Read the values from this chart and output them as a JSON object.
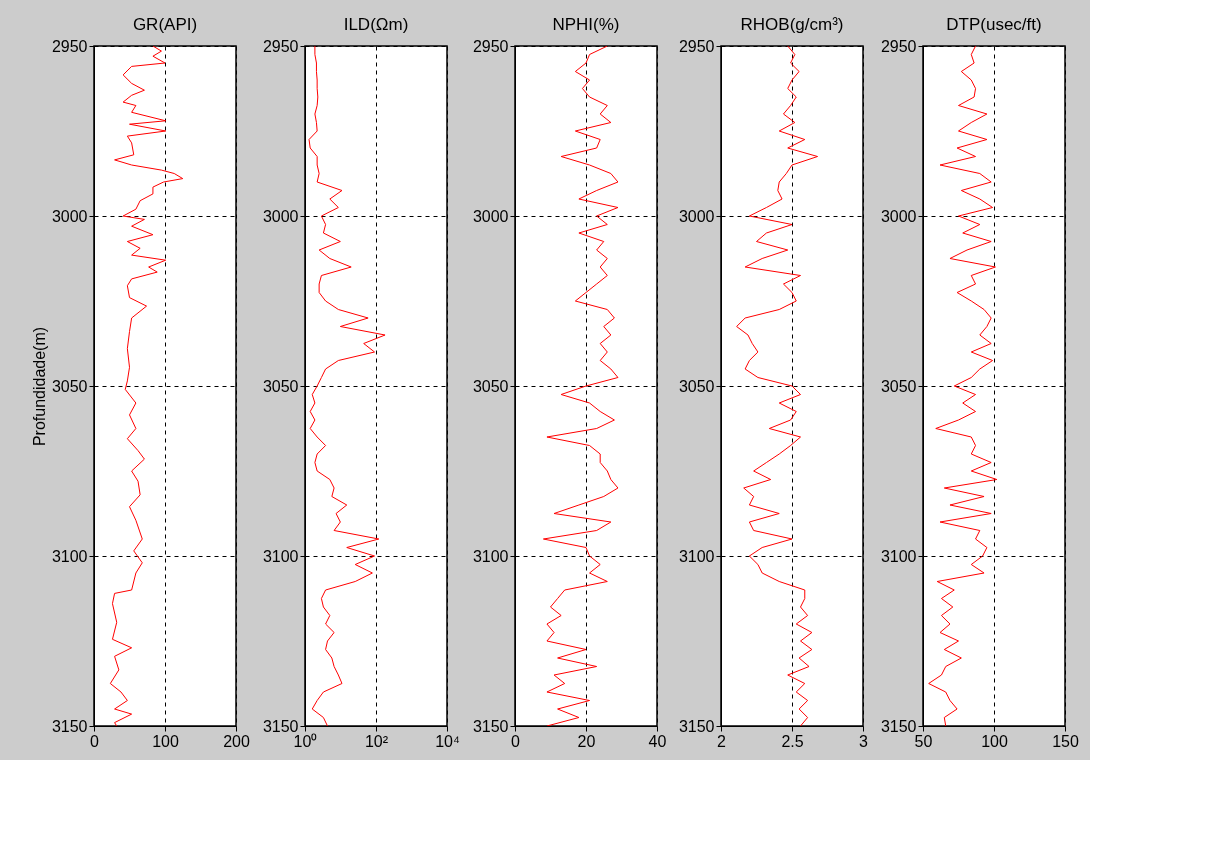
{
  "chart_data": [
    {
      "type": "line",
      "title": "GR(API)",
      "ylabel": "Profundidade(m)",
      "color": "#ff0000",
      "grid": true,
      "xlim": [
        0,
        200
      ],
      "xticks": [
        0,
        100,
        200
      ],
      "ylim": [
        3150,
        2950
      ],
      "yticks": [
        2950,
        3000,
        3050,
        3100,
        3150
      ],
      "x": [
        83,
        95,
        83,
        100,
        53,
        41,
        53,
        71,
        53,
        41,
        59,
        53,
        101,
        50,
        101,
        47,
        53,
        56,
        29,
        53,
        95,
        113,
        125,
        98,
        83,
        83,
        65,
        59,
        41,
        71,
        53,
        83,
        47,
        65,
        53,
        101,
        77,
        89,
        53,
        47,
        50,
        74,
        53,
        50,
        47,
        50,
        47,
        44,
        59,
        50,
        59,
        47,
        62,
        71,
        53,
        62,
        65,
        50,
        59,
        68,
        56,
        68,
        59,
        53,
        29,
        26,
        32,
        26,
        53,
        29,
        35,
        23,
        38,
        47,
        29,
        53,
        29,
        32
      ],
      "values": [
        2950,
        2951.5,
        2953,
        2955,
        2956,
        2958.5,
        2961,
        2963,
        2964.5,
        2966.5,
        2967.5,
        2969.5,
        2972,
        2973,
        2975,
        2976.5,
        2978.5,
        2982,
        2983.5,
        2985,
        2986.5,
        2987.5,
        2989,
        2990,
        2991.5,
        2993.5,
        2995.5,
        2998,
        3000,
        3001,
        3003,
        3005.5,
        3007.5,
        3009.5,
        3011.5,
        3013,
        3015,
        3016.5,
        3018.5,
        3020.5,
        3024,
        3026.5,
        3030,
        3034,
        3039,
        3044.5,
        3048.5,
        3051,
        3055,
        3058.5,
        3062.5,
        3065.5,
        3069,
        3071.5,
        3075,
        3078,
        3082,
        3085.5,
        3089.5,
        3095,
        3098.5,
        3102,
        3105,
        3110,
        3111,
        3114,
        3119.5,
        3124.5,
        3127,
        3129.5,
        3133.5,
        3137.5,
        3140,
        3142.5,
        3145,
        3146.5,
        3149,
        3150
      ]
    },
    {
      "type": "line",
      "title": "ILD(Ωm)",
      "color": "#ff0000",
      "grid": true,
      "log": "x",
      "xlim": [
        1,
        10000
      ],
      "xticks": [
        {
          "value": 1,
          "label": "10⁰"
        },
        {
          "value": 100,
          "label": "10²"
        },
        {
          "value": 10000,
          "label": "10⁴"
        }
      ],
      "ylim": [
        3150,
        2950
      ],
      "yticks": [
        2950,
        3000,
        3050,
        3100,
        3150
      ],
      "x": [
        1.9,
        1.9,
        2.1,
        2.1,
        2.2,
        2.2,
        2.3,
        2.2,
        1.9,
        2.1,
        2.2,
        1.3,
        1.4,
        2.2,
        2.2,
        2.5,
        2.2,
        11,
        5,
        8.7,
        2.9,
        3.8,
        3.3,
        9.9,
        2.5,
        5,
        20,
        2.9,
        2.5,
        2.5,
        3.8,
        8.7,
        60,
        9.9,
        180,
        45,
        91,
        8.7,
        3.8,
        2.9,
        2.2,
        1.6,
        1.9,
        1.4,
        1.9,
        1.4,
        2.2,
        3.8,
        2.2,
        1.9,
        2.2,
        5,
        6.6,
        5.7,
        15,
        7.5,
        9.9,
        6.6,
        120,
        15,
        91,
        26,
        79,
        26,
        3.8,
        2.9,
        3.3,
        5,
        3.8,
        6.6,
        4.3,
        3.8,
        5.7,
        6.6,
        8.7,
        11,
        3.3,
        2.2,
        1.6,
        3.3,
        4.3
      ],
      "values": [
        2950,
        2952.5,
        2955,
        2957.5,
        2960,
        2962.5,
        2965,
        2967.5,
        2970,
        2972.5,
        2975,
        2977.5,
        2980,
        2982.5,
        2985,
        2987.5,
        2990,
        2992.5,
        2995,
        2997.5,
        3000,
        3002.5,
        3005,
        3007.5,
        3010,
        3012.5,
        3015,
        3017.5,
        3020,
        3022.5,
        3025,
        3027.5,
        3030,
        3032.5,
        3035,
        3037.5,
        3040,
        3042.5,
        3045,
        3047.5,
        3050,
        3052.5,
        3055,
        3057.5,
        3060,
        3062.5,
        3065,
        3067.5,
        3070,
        3072.5,
        3075,
        3077.5,
        3080,
        3082.5,
        3085,
        3087.5,
        3090,
        3092.5,
        3095,
        3097.5,
        3100,
        3102.5,
        3105,
        3107.5,
        3110,
        3112.5,
        3115,
        3117.5,
        3120,
        3122.5,
        3125,
        3127.5,
        3130,
        3132.5,
        3135,
        3137.5,
        3140,
        3142.5,
        3145,
        3147.5,
        3150
      ]
    },
    {
      "type": "line",
      "title": "NPHI(%)",
      "color": "#ff0000",
      "grid": true,
      "xlim": [
        0,
        40
      ],
      "xticks": [
        0,
        20,
        40
      ],
      "ylim": [
        3150,
        2950
      ],
      "yticks": [
        2950,
        3000,
        3050,
        3100,
        3150
      ],
      "x": [
        26,
        21,
        20,
        17,
        21,
        19,
        21,
        26,
        24,
        27,
        17,
        24,
        23,
        13,
        21,
        27,
        29,
        23,
        18,
        29,
        23,
        26,
        18,
        25,
        23,
        26,
        24,
        26,
        23,
        20,
        17,
        26,
        28,
        25,
        27,
        24,
        26,
        24,
        27,
        29,
        20,
        13,
        21,
        24,
        28,
        23,
        9,
        21,
        24,
        24,
        26,
        27,
        29,
        25,
        18,
        11,
        27,
        23,
        8,
        20,
        21,
        24,
        21,
        26,
        14,
        12,
        10,
        13,
        9,
        11,
        9,
        20,
        12,
        23,
        11,
        14,
        9,
        21,
        12,
        18,
        9
      ],
      "values": [
        2950,
        2952.5,
        2955,
        2957.5,
        2960,
        2962.5,
        2965,
        2967.5,
        2970,
        2972.5,
        2975,
        2977.5,
        2980,
        2982.5,
        2985,
        2987.5,
        2990,
        2992.5,
        2995,
        2997.5,
        3000,
        3002.5,
        3005,
        3007.5,
        3010,
        3012.5,
        3015,
        3017.5,
        3020,
        3022.5,
        3025,
        3027.5,
        3030,
        3032.5,
        3035,
        3037.5,
        3040,
        3042.5,
        3045,
        3047.5,
        3050,
        3052.5,
        3055,
        3057.5,
        3060,
        3062.5,
        3065,
        3067.5,
        3070,
        3072.5,
        3075,
        3077.5,
        3080,
        3082.5,
        3085,
        3087.5,
        3090,
        3092.5,
        3095,
        3097.5,
        3100,
        3102.5,
        3105,
        3107.5,
        3110,
        3112.5,
        3115,
        3117.5,
        3120,
        3122.5,
        3125,
        3127.5,
        3130,
        3132.5,
        3135,
        3137.5,
        3140,
        3142.5,
        3145,
        3147.5,
        3150
      ]
    },
    {
      "type": "line",
      "title": "RHOB(g/cm³)",
      "color": "#ff0000",
      "grid": true,
      "xlim": [
        2,
        3
      ],
      "xticks": [
        2,
        2.5,
        3
      ],
      "ylim": [
        3150,
        2950
      ],
      "yticks": [
        2950,
        3000,
        3050,
        3100,
        3150
      ],
      "x": [
        2.47,
        2.52,
        2.49,
        2.55,
        2.5,
        2.47,
        2.53,
        2.49,
        2.44,
        2.52,
        2.41,
        2.59,
        2.47,
        2.68,
        2.5,
        2.46,
        2.41,
        2.4,
        2.43,
        2.32,
        2.2,
        2.5,
        2.32,
        2.25,
        2.47,
        2.29,
        2.17,
        2.56,
        2.44,
        2.5,
        2.53,
        2.41,
        2.17,
        2.11,
        2.19,
        2.22,
        2.26,
        2.2,
        2.17,
        2.26,
        2.5,
        2.56,
        2.41,
        2.53,
        2.49,
        2.34,
        2.56,
        2.49,
        2.41,
        2.32,
        2.23,
        2.35,
        2.16,
        2.23,
        2.2,
        2.41,
        2.2,
        2.23,
        2.5,
        2.29,
        2.2,
        2.26,
        2.29,
        2.41,
        2.59,
        2.59,
        2.56,
        2.61,
        2.53,
        2.64,
        2.56,
        2.64,
        2.55,
        2.62,
        2.47,
        2.59,
        2.53,
        2.61,
        2.55,
        2.61,
        2.56
      ],
      "values": [
        2950,
        2952.5,
        2955,
        2957.5,
        2960,
        2962.5,
        2965,
        2967.5,
        2970,
        2972.5,
        2975,
        2977.5,
        2980,
        2982.5,
        2985,
        2987.5,
        2990,
        2992.5,
        2995,
        2997.5,
        3000,
        3002.5,
        3005,
        3007.5,
        3010,
        3012.5,
        3015,
        3017.5,
        3020,
        3022.5,
        3025,
        3027.5,
        3030,
        3032.5,
        3035,
        3037.5,
        3040,
        3042.5,
        3045,
        3047.5,
        3050,
        3052.5,
        3055,
        3057.5,
        3060,
        3062.5,
        3065,
        3067.5,
        3070,
        3072.5,
        3075,
        3077.5,
        3080,
        3082.5,
        3085,
        3087.5,
        3090,
        3092.5,
        3095,
        3097.5,
        3100,
        3102.5,
        3105,
        3107.5,
        3110,
        3112.5,
        3115,
        3117.5,
        3120,
        3122.5,
        3125,
        3127.5,
        3130,
        3132.5,
        3135,
        3137.5,
        3140,
        3142.5,
        3145,
        3147.5,
        3150
      ]
    },
    {
      "type": "line",
      "title": "DTP(usec/ft)",
      "color": "#ff0000",
      "grid": true,
      "xlim": [
        50,
        150
      ],
      "xticks": [
        50,
        100,
        150
      ],
      "ylim": [
        3150,
        2950
      ],
      "yticks": [
        2950,
        3000,
        3050,
        3100,
        3150
      ],
      "x": [
        87,
        84,
        86,
        77,
        84,
        87,
        86,
        75,
        95,
        84,
        75,
        95,
        74,
        87,
        62,
        90,
        98,
        77,
        90,
        99,
        75,
        90,
        78,
        98,
        81,
        69,
        101,
        84,
        87,
        74,
        84,
        93,
        98,
        95,
        90,
        98,
        84,
        99,
        90,
        84,
        72,
        87,
        78,
        87,
        75,
        59,
        84,
        87,
        84,
        98,
        84,
        102,
        65,
        93,
        69,
        98,
        62,
        90,
        87,
        95,
        92,
        84,
        93,
        60,
        72,
        63,
        71,
        63,
        69,
        62,
        75,
        65,
        77,
        66,
        63,
        54,
        66,
        69,
        74,
        65,
        66
      ],
      "values": [
        2950,
        2952.5,
        2955,
        2957.5,
        2960,
        2962.5,
        2965,
        2967.5,
        2970,
        2972.5,
        2975,
        2977.5,
        2980,
        2982.5,
        2985,
        2987.5,
        2990,
        2992.5,
        2995,
        2997.5,
        3000,
        3002.5,
        3005,
        3007.5,
        3010,
        3012.5,
        3015,
        3017.5,
        3020,
        3022.5,
        3025,
        3027.5,
        3030,
        3032.5,
        3035,
        3037.5,
        3040,
        3042.5,
        3045,
        3047.5,
        3050,
        3052.5,
        3055,
        3057.5,
        3060,
        3062.5,
        3065,
        3067.5,
        3070,
        3072.5,
        3075,
        3077.5,
        3080,
        3082.5,
        3085,
        3087.5,
        3090,
        3092.5,
        3095,
        3097.5,
        3100,
        3102.5,
        3105,
        3107.5,
        3110,
        3112.5,
        3115,
        3117.5,
        3120,
        3122.5,
        3125,
        3127.5,
        3130,
        3132.5,
        3135,
        3137.5,
        3140,
        3142.5,
        3145,
        3147.5,
        3150
      ]
    }
  ]
}
